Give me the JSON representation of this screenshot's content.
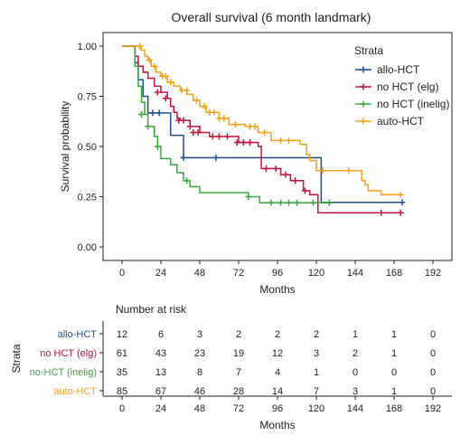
{
  "chart_data": {
    "type": "line",
    "title": "Overall survival (6 month landmark)",
    "xlabel": "Months",
    "ylabel": "Survival probability",
    "xlim": [
      0,
      192
    ],
    "ylim": [
      0,
      1
    ],
    "xticks": [
      0,
      24,
      48,
      72,
      96,
      120,
      144,
      168,
      192
    ],
    "yticks": [
      "0.00",
      "0.25",
      "0.50",
      "0.75",
      "1.00"
    ],
    "legend": {
      "title": "Strata",
      "position": "top-right"
    },
    "series": [
      {
        "name": "allo-HCT",
        "color": "#1f4e96",
        "points": [
          [
            0,
            1
          ],
          [
            6,
            1
          ],
          [
            8,
            0.917
          ],
          [
            10,
            0.833
          ],
          [
            13,
            0.75
          ],
          [
            16,
            0.667
          ],
          [
            27,
            0.667
          ],
          [
            30,
            0.556
          ],
          [
            38,
            0.444
          ],
          [
            123,
            0.444
          ],
          [
            123,
            0.222
          ],
          [
            172,
            0.222
          ]
        ],
        "censored": [
          [
            19,
            0.667
          ],
          [
            23,
            0.667
          ],
          [
            38,
            0.444
          ],
          [
            58,
            0.444
          ],
          [
            173,
            0.222
          ]
        ]
      },
      {
        "name": "no HCT (elg)",
        "color": "#c0143c",
        "points": [
          [
            0,
            1
          ],
          [
            6,
            1
          ],
          [
            8,
            0.95
          ],
          [
            10,
            0.9
          ],
          [
            13,
            0.87
          ],
          [
            16,
            0.84
          ],
          [
            20,
            0.8
          ],
          [
            24,
            0.77
          ],
          [
            28,
            0.74
          ],
          [
            30,
            0.7
          ],
          [
            32,
            0.67
          ],
          [
            34,
            0.64
          ],
          [
            36,
            0.63
          ],
          [
            42,
            0.6
          ],
          [
            48,
            0.57
          ],
          [
            54,
            0.55
          ],
          [
            72,
            0.52
          ],
          [
            84,
            0.5
          ],
          [
            86,
            0.39
          ],
          [
            98,
            0.36
          ],
          [
            104,
            0.33
          ],
          [
            112,
            0.28
          ],
          [
            116,
            0.26
          ],
          [
            121,
            0.17
          ],
          [
            172,
            0.17
          ]
        ],
        "censored": [
          [
            22,
            0.77
          ],
          [
            27,
            0.74
          ],
          [
            35,
            0.63
          ],
          [
            38,
            0.63
          ],
          [
            42,
            0.6
          ],
          [
            44,
            0.57
          ],
          [
            47,
            0.57
          ],
          [
            56,
            0.55
          ],
          [
            60,
            0.55
          ],
          [
            65,
            0.55
          ],
          [
            71,
            0.52
          ],
          [
            75,
            0.52
          ],
          [
            79,
            0.52
          ],
          [
            89,
            0.39
          ],
          [
            95,
            0.39
          ],
          [
            101,
            0.36
          ],
          [
            107,
            0.33
          ],
          [
            113,
            0.28
          ],
          [
            160,
            0.17
          ],
          [
            172,
            0.17
          ]
        ]
      },
      {
        "name": "no HCT (inelig)",
        "color": "#3aa83a",
        "points": [
          [
            0,
            1
          ],
          [
            5,
            1
          ],
          [
            8,
            0.9
          ],
          [
            10,
            0.8
          ],
          [
            12,
            0.72
          ],
          [
            14,
            0.66
          ],
          [
            16,
            0.6
          ],
          [
            20,
            0.55
          ],
          [
            22,
            0.5
          ],
          [
            24,
            0.44
          ],
          [
            30,
            0.41
          ],
          [
            34,
            0.37
          ],
          [
            38,
            0.33
          ],
          [
            42,
            0.3
          ],
          [
            48,
            0.27
          ],
          [
            78,
            0.25
          ],
          [
            85,
            0.22
          ],
          [
            128,
            0.22
          ]
        ],
        "censored": [
          [
            12,
            0.66
          ],
          [
            16,
            0.6
          ],
          [
            22,
            0.5
          ],
          [
            40,
            0.33
          ],
          [
            78,
            0.25
          ],
          [
            92,
            0.22
          ],
          [
            98,
            0.22
          ],
          [
            103,
            0.22
          ],
          [
            108,
            0.22
          ],
          [
            118,
            0.22
          ],
          [
            128,
            0.22
          ]
        ]
      },
      {
        "name": "auto-HCT",
        "color": "#f5a014",
        "points": [
          [
            0,
            1
          ],
          [
            10,
            1
          ],
          [
            12,
            0.98
          ],
          [
            14,
            0.95
          ],
          [
            16,
            0.93
          ],
          [
            18,
            0.9
          ],
          [
            21,
            0.87
          ],
          [
            24,
            0.85
          ],
          [
            28,
            0.82
          ],
          [
            32,
            0.8
          ],
          [
            36,
            0.78
          ],
          [
            40,
            0.76
          ],
          [
            44,
            0.73
          ],
          [
            48,
            0.7
          ],
          [
            52,
            0.67
          ],
          [
            60,
            0.64
          ],
          [
            66,
            0.61
          ],
          [
            76,
            0.6
          ],
          [
            84,
            0.57
          ],
          [
            92,
            0.53
          ],
          [
            110,
            0.51
          ],
          [
            114,
            0.46
          ],
          [
            116,
            0.43
          ],
          [
            120,
            0.38
          ],
          [
            144,
            0.38
          ],
          [
            148,
            0.33
          ],
          [
            150,
            0.31
          ],
          [
            152,
            0.28
          ],
          [
            160,
            0.26
          ],
          [
            172,
            0.26
          ]
        ],
        "censored": [
          [
            11,
            1
          ],
          [
            17,
            0.93
          ],
          [
            20,
            0.9
          ],
          [
            25,
            0.85
          ],
          [
            27,
            0.85
          ],
          [
            30,
            0.82
          ],
          [
            37,
            0.78
          ],
          [
            40,
            0.78
          ],
          [
            46,
            0.73
          ],
          [
            51,
            0.7
          ],
          [
            54,
            0.67
          ],
          [
            57,
            0.67
          ],
          [
            60,
            0.64
          ],
          [
            63,
            0.64
          ],
          [
            70,
            0.61
          ],
          [
            79,
            0.6
          ],
          [
            82,
            0.6
          ],
          [
            88,
            0.57
          ],
          [
            98,
            0.53
          ],
          [
            103,
            0.53
          ],
          [
            124,
            0.38
          ],
          [
            140,
            0.38
          ],
          [
            172,
            0.26
          ]
        ]
      }
    ]
  },
  "risk_table": {
    "title": "Number at risk",
    "ylabel": "Strata",
    "xlabel": "Months",
    "xticks": [
      0,
      24,
      48,
      72,
      96,
      120,
      144,
      168,
      192
    ],
    "rows": [
      {
        "label": "allo-HCT",
        "color": "#1f4e96",
        "counts": [
          "12",
          "6",
          "3",
          "2",
          "2",
          "2",
          "1",
          "1",
          "0"
        ]
      },
      {
        "label": "no HCT (elg)",
        "color": "#c0143c",
        "counts": [
          "61",
          "43",
          "23",
          "19",
          "12",
          "3",
          "2",
          "1",
          "0"
        ]
      },
      {
        "label": "no-HCT (inelig)",
        "color": "#3aa83a",
        "counts": [
          "35",
          "13",
          "8",
          "7",
          "4",
          "1",
          "0",
          "0",
          "0"
        ]
      },
      {
        "label": "auto-HCT",
        "color": "#f5a014",
        "counts": [
          "85",
          "67",
          "46",
          "28",
          "14",
          "7",
          "3",
          "1",
          "0"
        ]
      }
    ]
  }
}
